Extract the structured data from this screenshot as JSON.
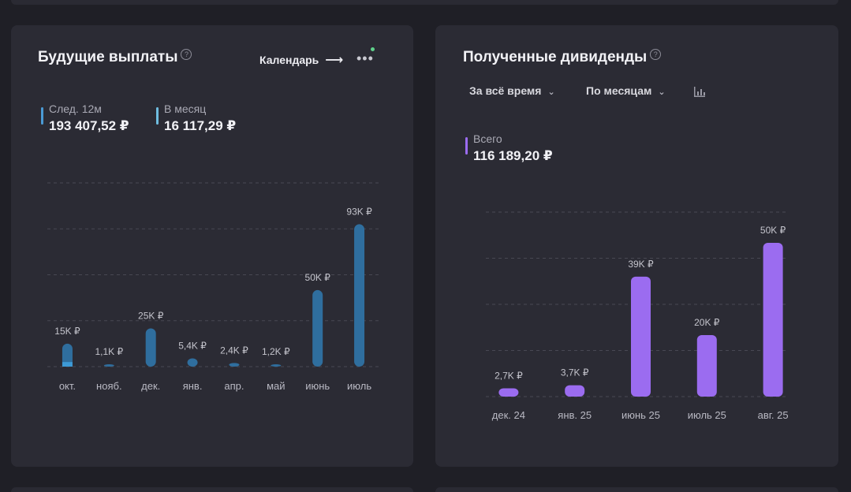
{
  "left": {
    "title": "Будущие выплаты",
    "help_icon": "?",
    "calendar_label": "Календарь",
    "arrow_icon": "arrow-right-icon",
    "more_icon": "more-dots-icon",
    "metrics": [
      {
        "label": "След. 12м",
        "value": "193 407,52 ₽",
        "color": "#4a9ad4"
      },
      {
        "label": "В месяц",
        "value": "16 117,29 ₽",
        "color": "#6fbde0"
      }
    ]
  },
  "right": {
    "title": "Полученные дивиденды",
    "help_icon": "?",
    "period_dropdown": "За всё время",
    "group_dropdown": "По месяцам",
    "chart_toggle_icon": "bar-chart-icon",
    "metrics": [
      {
        "label": "Всего",
        "value": "116 189,20 ₽",
        "color": "#9b6cf0"
      }
    ]
  },
  "chart_data": [
    {
      "type": "bar",
      "categories": [
        "окт.",
        "нояб.",
        "дек.",
        "янв.",
        "апр.",
        "май",
        "июнь",
        "июль"
      ],
      "values": [
        15000,
        1100,
        25000,
        5400,
        2400,
        1200,
        50000,
        93000
      ],
      "highlight_values": [
        3000,
        0,
        0,
        0,
        0,
        0,
        0,
        0
      ],
      "data_labels": [
        "15K ₽",
        "1,1K ₽",
        "25K ₽",
        "5,4K ₽",
        "2,4K ₽",
        "1,2K ₽",
        "50K ₽",
        "93K ₽"
      ],
      "ylim": [
        0,
        120000
      ],
      "grid": true,
      "bar_color": "#2f6e9e",
      "highlight_color": "#3d9ad6"
    },
    {
      "type": "bar",
      "categories": [
        "дек. 24",
        "янв. 25",
        "июнь 25",
        "июль 25",
        "авг. 25"
      ],
      "values": [
        2700,
        3700,
        39000,
        20000,
        50000
      ],
      "data_labels": [
        "2,7K ₽",
        "3,7K ₽",
        "39K ₽",
        "20K ₽",
        "50K ₽"
      ],
      "ylim": [
        0,
        60000
      ],
      "grid": true,
      "bar_color": "#9b6cf0"
    }
  ]
}
